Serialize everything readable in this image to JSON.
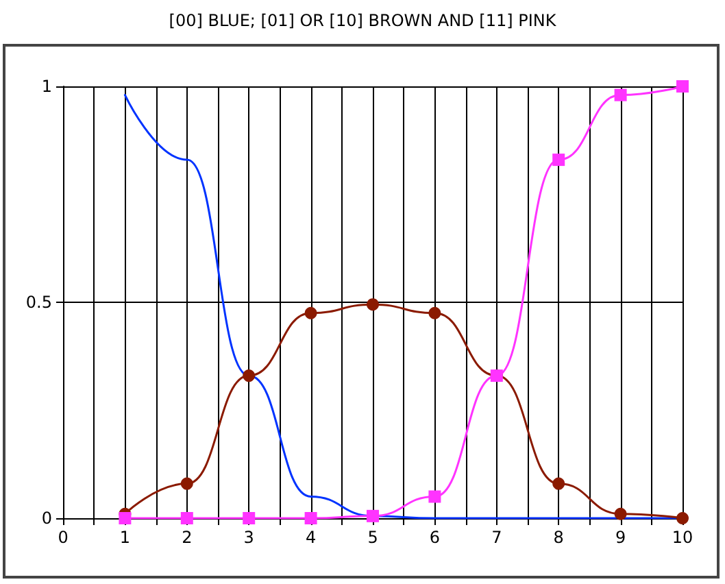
{
  "chart_data": {
    "type": "line",
    "title": "[00] BLUE; [01] OR [10] BROWN AND [11] PINK",
    "x": [
      1,
      2,
      3,
      4,
      5,
      6,
      7,
      8,
      9,
      10
    ],
    "series": [
      {
        "color": "#0033ff",
        "marker": "none",
        "values": [
          0.98,
          0.83,
          0.33,
          0.05,
          0.005,
          0,
          0,
          0,
          0,
          0
        ]
      },
      {
        "color": "#8b1a00",
        "marker": "circle",
        "values": [
          0.01,
          0.08,
          0.33,
          0.475,
          0.495,
          0.475,
          0.33,
          0.08,
          0.01,
          0
        ]
      },
      {
        "color": "#ff33ff",
        "marker": "square",
        "values": [
          0,
          0,
          0,
          0,
          0.005,
          0.05,
          0.33,
          0.83,
          0.98,
          1
        ]
      }
    ],
    "xlim": [
      0,
      10
    ],
    "xticks": [
      0,
      {
        "value": 0.5,
        "label": null
      },
      1,
      {
        "value": 1.5,
        "label": null
      },
      2,
      {
        "value": 2.5,
        "label": null
      },
      3,
      {
        "value": 3.5,
        "label": null
      },
      4,
      {
        "value": 4.5,
        "label": null
      },
      5,
      {
        "value": 5.5,
        "label": null
      },
      6,
      {
        "value": 6.5,
        "label": null
      },
      7,
      {
        "value": 7.5,
        "label": null
      },
      8,
      {
        "value": 8.5,
        "label": null
      },
      9,
      {
        "value": 9.5,
        "label": null
      },
      10
    ],
    "ylim": [
      0,
      1
    ],
    "yticks": [
      0,
      0.5,
      1
    ],
    "grid": true,
    "line_style": "solid"
  }
}
